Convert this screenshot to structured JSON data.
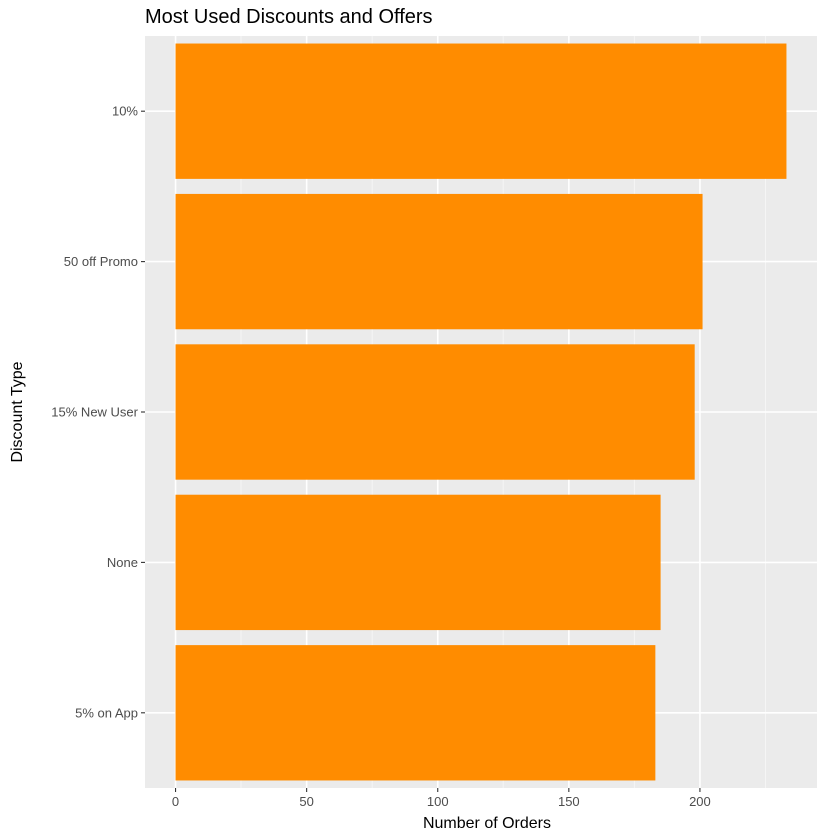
{
  "chart_data": {
    "type": "bar",
    "orientation": "horizontal",
    "title": "Most Used Discounts and Offers",
    "xlabel": "Number of Orders",
    "ylabel": "Discount Type",
    "categories": [
      "10%",
      "50 off Promo",
      "15% New User",
      "None",
      "5% on App"
    ],
    "values": [
      233,
      201,
      198,
      185,
      183
    ],
    "xlim": [
      -11.65,
      244.65
    ],
    "xticks": [
      0,
      50,
      100,
      150,
      200
    ],
    "grid": true,
    "legend": "none"
  },
  "colors": {
    "bar": "#ff8c00",
    "panel": "#ebebeb",
    "grid_major": "#ffffff",
    "grid_minor": "#f5f5f5",
    "tick_text": "#4d4d4d",
    "tick_mark": "#333333"
  }
}
